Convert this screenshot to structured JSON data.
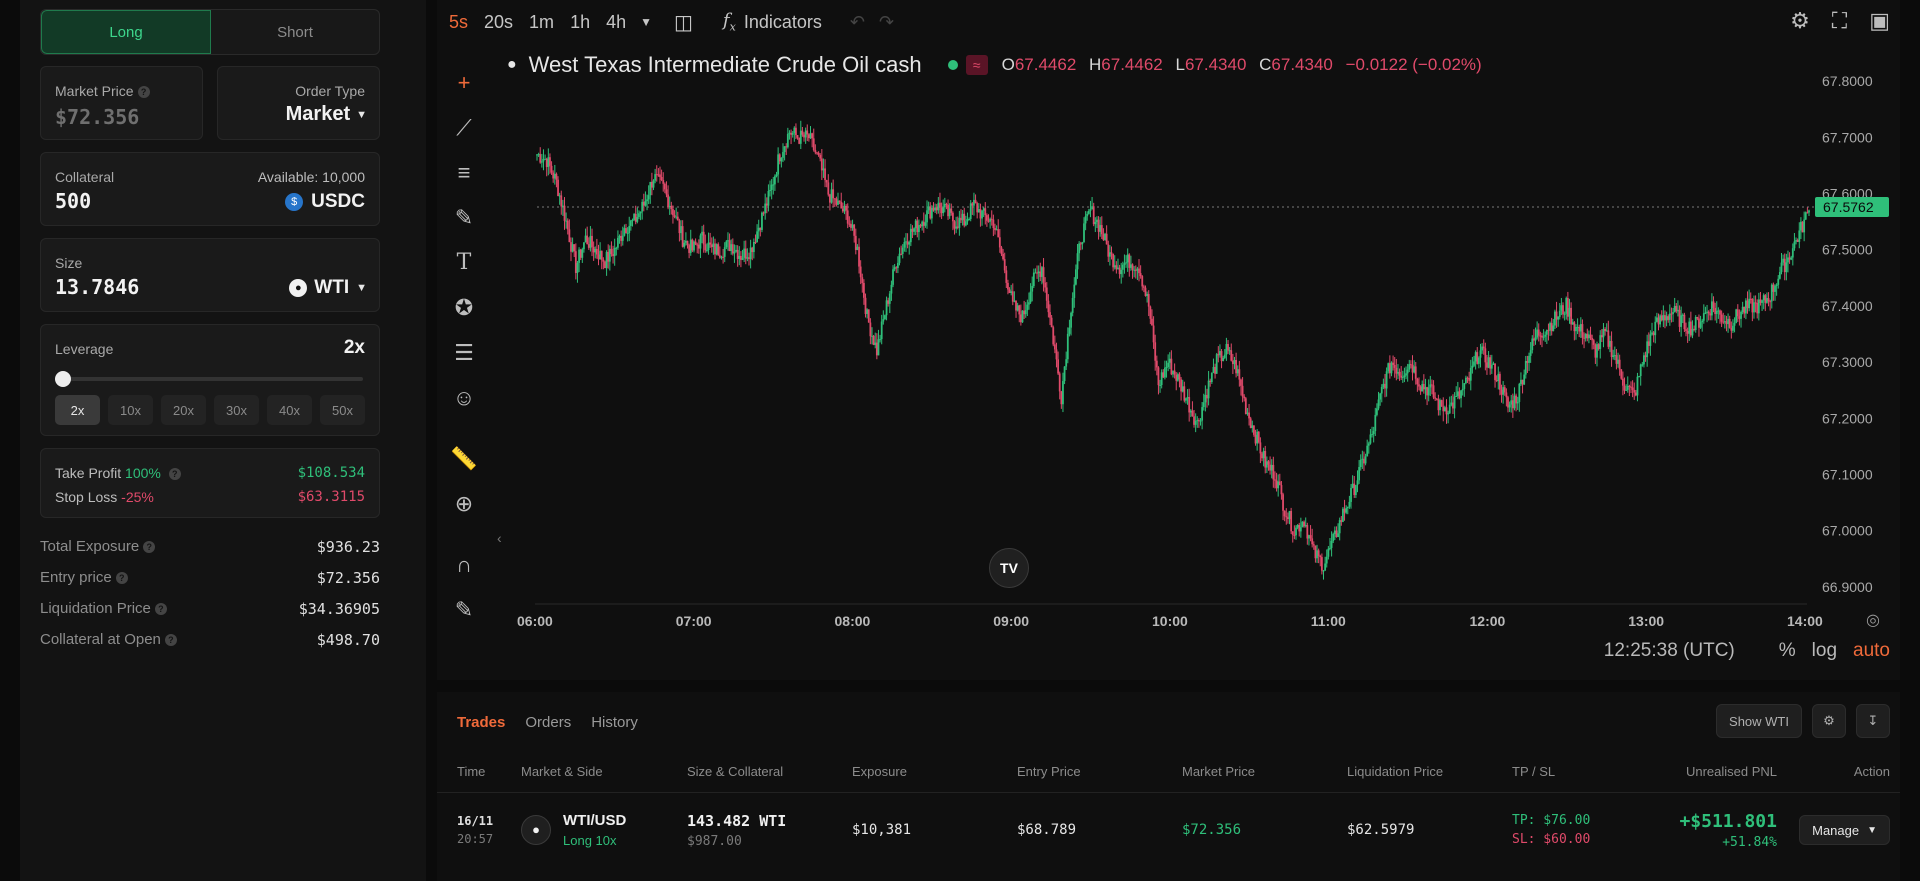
{
  "side_toggle": {
    "long": "Long",
    "short": "Short"
  },
  "market_price": {
    "label": "Market Price",
    "value": "$72.356"
  },
  "order_type": {
    "label": "Order Type",
    "value": "Market"
  },
  "collateral": {
    "label": "Collateral",
    "value": "500",
    "available": "Available: 10,000",
    "token": "USDC"
  },
  "size": {
    "label": "Size",
    "value": "13.7846",
    "token": "WTI"
  },
  "leverage": {
    "label": "Leverage",
    "value": "2x",
    "fraction": 0,
    "options": [
      "2x",
      "10x",
      "20x",
      "30x",
      "40x",
      "50x"
    ],
    "selected": "2x"
  },
  "take_profit": {
    "label": "Take Profit",
    "pct": "100%",
    "value": "$108.534"
  },
  "stop_loss": {
    "label": "Stop Loss",
    "pct": "-25%",
    "value": "$63.3115"
  },
  "summary": [
    {
      "k": "Total Exposure",
      "v": "$936.23"
    },
    {
      "k": "Entry price",
      "v": "$72.356"
    },
    {
      "k": "Liquidation Price",
      "v": "$34.36905"
    },
    {
      "k": "Collateral at Open",
      "v": "$498.70"
    }
  ],
  "toolbar": {
    "timeframes": [
      "5s",
      "20s",
      "1m",
      "1h",
      "4h"
    ],
    "selected_timeframe": "5s",
    "indicators": "Indicators"
  },
  "chart": {
    "symbol_title": "West Texas Intermediate Crude Oil cash",
    "ohlc": {
      "o": "67.4462",
      "h": "67.4462",
      "l": "67.4340",
      "c": "67.4340",
      "chg": "−0.0122 (−0.02%)"
    },
    "current_price_label": "67.5762",
    "time": "12:25:38 (UTC)",
    "pct": "%",
    "log": "log",
    "auto": "auto",
    "colors": {
      "up": "#2fbf7a",
      "down": "#e04a6a",
      "accent": "#ef6a3a"
    }
  },
  "chart_data": {
    "type": "candlestick",
    "x_ticks": [
      "06:00",
      "07:00",
      "08:00",
      "09:00",
      "10:00",
      "11:00",
      "12:00",
      "13:00",
      "14:00"
    ],
    "y_ticks": [
      "67.8000",
      "67.7000",
      "67.6000",
      "67.5000",
      "67.4000",
      "67.3000",
      "67.2000",
      "67.1000",
      "67.0000",
      "66.9000"
    ],
    "ylim": [
      66.88,
      67.82
    ],
    "series": [
      {
        "values": [
          67.67,
          67.66,
          67.62,
          67.55,
          67.47,
          67.52,
          67.5,
          67.48,
          67.5,
          67.54,
          67.55,
          67.58,
          67.63,
          67.61,
          67.57,
          67.52,
          67.5,
          67.52,
          67.5,
          67.5,
          67.51,
          67.49,
          67.5,
          67.55,
          67.6,
          67.67,
          67.71,
          67.7,
          67.7,
          67.66,
          67.6,
          67.58,
          67.56,
          67.5,
          67.38,
          67.32,
          67.4,
          67.48,
          67.52,
          67.54,
          67.56,
          67.58,
          67.57,
          67.55,
          67.55,
          67.58,
          67.56,
          67.55,
          67.48,
          67.4,
          67.38,
          67.44,
          67.47,
          67.36,
          67.24,
          67.4,
          67.52,
          67.57,
          67.54,
          67.49,
          67.47,
          67.48,
          67.47,
          67.4,
          67.26,
          67.3,
          67.27,
          67.23,
          67.19,
          67.25,
          67.3,
          67.32,
          67.29,
          67.22,
          67.17,
          67.12,
          67.1,
          67.04,
          67.0,
          67.02,
          66.96,
          66.94,
          66.98,
          67.03,
          67.07,
          67.12,
          67.17,
          67.25,
          67.3,
          67.28,
          67.3,
          67.26,
          67.25,
          67.22,
          67.22,
          67.24,
          67.27,
          67.32,
          67.3,
          67.27,
          67.22,
          67.24,
          67.31,
          67.35,
          67.36,
          67.38,
          67.4,
          67.36,
          67.35,
          67.32,
          67.35,
          67.31,
          67.26,
          67.24,
          67.31,
          67.36,
          67.38,
          67.39,
          67.37,
          67.36,
          67.38,
          67.4,
          67.38,
          67.37,
          67.39,
          67.4,
          67.4,
          67.42,
          67.46,
          67.49,
          67.53,
          67.57
        ]
      }
    ]
  },
  "trades": {
    "tabs": [
      "Trades",
      "Orders",
      "History"
    ],
    "selected_tab": "Trades",
    "show_btn": "Show WTI",
    "headers": [
      "Time",
      "Market & Side",
      "Size & Collateral",
      "Exposure",
      "Entry Price",
      "Market Price",
      "Liquidation Price",
      "TP / SL",
      "Unrealised PNL",
      "Action"
    ],
    "rows": [
      {
        "date": "16/11",
        "time": "20:57",
        "market": "WTI/USD",
        "side": "Long 10x",
        "size": "143.482 WTI",
        "collateral": "$987.00",
        "exposure": "$10,381",
        "entry": "$68.789",
        "market_price": "$72.356",
        "liquidation": "$62.5979",
        "tp": "TP: $76.00",
        "sl": "SL: $60.00",
        "pnl": "+$511.801",
        "pnl_pct": "+51.84%",
        "action": "Manage"
      }
    ]
  }
}
